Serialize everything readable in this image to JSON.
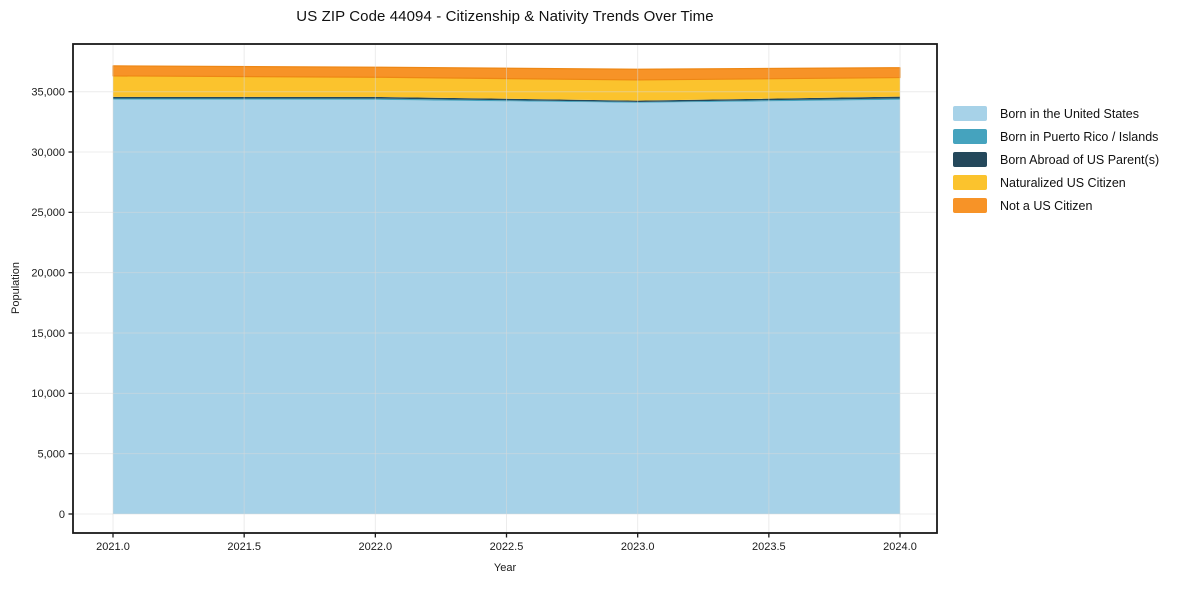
{
  "figure": {
    "title": "US ZIP Code 44094 - Citizenship & Nativity Trends Over Time",
    "xlabel": "Year",
    "ylabel": "Population"
  },
  "chart_data": {
    "type": "area",
    "stacked": true,
    "title": "US ZIP Code 44094 - Citizenship & Nativity Trends Over Time",
    "xlabel": "Year",
    "ylabel": "Population",
    "x": [
      2021,
      2022,
      2023,
      2024
    ],
    "series": [
      {
        "name": "Born in the United States",
        "color": "#A7D2E8",
        "edge": null,
        "values": [
          34350,
          34330,
          34080,
          34330
        ]
      },
      {
        "name": "Born in Puerto Rico / Islands",
        "color": "#45A3BE",
        "edge": null,
        "values": [
          90,
          100,
          70,
          110
        ]
      },
      {
        "name": "Born Abroad of US Parent(s)",
        "color": "#24485B",
        "edge": null,
        "values": [
          130,
          140,
          110,
          150
        ]
      },
      {
        "name": "Naturalized US Citizen",
        "color": "#FBC32D",
        "edge": null,
        "values": [
          1740,
          1630,
          1715,
          1580
        ]
      },
      {
        "name": "Not a US Citizen",
        "color": "#F79327",
        "edge": "#EE8714",
        "values": [
          830,
          830,
          885,
          820
        ]
      }
    ],
    "xticks": [
      2021.0,
      2021.5,
      2022.0,
      2022.5,
      2023.0,
      2023.5,
      2024.0
    ],
    "xtick_labels": [
      "2021.0",
      "2021.5",
      "2022.0",
      "2022.5",
      "2023.0",
      "2023.5",
      "2024.0"
    ],
    "yticks": [
      0,
      5000,
      10000,
      15000,
      20000,
      25000,
      30000,
      35000
    ],
    "ytick_labels": [
      "0",
      "5,000",
      "10,000",
      "15,000",
      "20,000",
      "25,000",
      "30,000",
      "35,000"
    ],
    "xlim": [
      2020.8475,
      2024.141
    ],
    "ylim": [
      -1575,
      38953
    ],
    "grid": true,
    "legend_position": "right of plot, no frame"
  },
  "colors": {
    "background": "#ffffff",
    "frame": "#1a1a1a",
    "grid": "#D9D9D9",
    "tick_text": "#1a1a1a"
  }
}
